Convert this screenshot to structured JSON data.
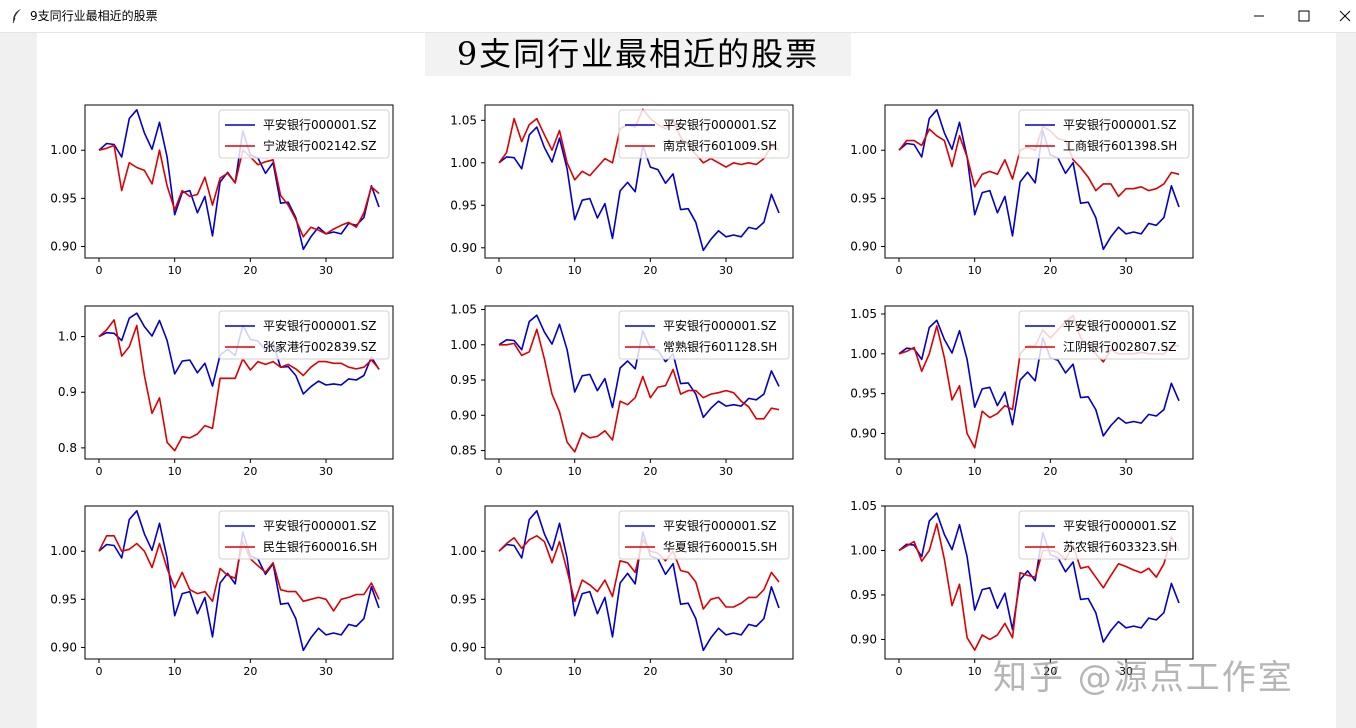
{
  "window": {
    "title": "9支同行业最相近的股票"
  },
  "figure": {
    "suptitle": "9支同行业最相近的股票"
  },
  "watermark": "知乎 @源点工作室",
  "colors": {
    "base": "#0000cc",
    "peer": "#dd0000"
  },
  "chart_data": [
    {
      "type": "line",
      "xticks": [
        0,
        10,
        20,
        30
      ],
      "ylim": [
        0.888,
        1.047
      ],
      "yticks": [
        0.9,
        0.95,
        1.0
      ],
      "legend": "top-right",
      "series": [
        {
          "name": "平安银行000001.SZ",
          "values": [
            1.0,
            1.007,
            1.006,
            0.993,
            1.033,
            1.042,
            1.018,
            1.001,
            1.029,
            0.993,
            0.933,
            0.956,
            0.958,
            0.935,
            0.952,
            0.911,
            0.967,
            0.977,
            0.966,
            1.02,
            0.995,
            0.992,
            0.976,
            0.987,
            0.945,
            0.946,
            0.93,
            0.897,
            0.91,
            0.92,
            0.913,
            0.915,
            0.913,
            0.924,
            0.922,
            0.93,
            0.963,
            0.941
          ]
        },
        {
          "name": "宁波银行002142.SZ",
          "values": [
            1.0,
            1.002,
            1.005,
            0.958,
            0.987,
            0.982,
            0.979,
            0.965,
            1.0,
            0.963,
            0.938,
            0.958,
            0.952,
            0.954,
            0.972,
            0.943,
            0.971,
            0.976,
            0.966,
            1.0,
            0.993,
            0.985,
            0.988,
            0.99,
            0.953,
            0.943,
            0.928,
            0.91,
            0.92,
            0.917,
            0.913,
            0.918,
            0.922,
            0.925,
            0.92,
            0.935,
            0.962,
            0.955
          ]
        }
      ]
    },
    {
      "type": "line",
      "xticks": [
        0,
        10,
        20,
        30
      ],
      "ylim": [
        0.888,
        1.068
      ],
      "yticks": [
        0.9,
        0.95,
        1.0,
        1.05
      ],
      "legend": "top-right",
      "series": [
        {
          "name": "平安银行000001.SZ",
          "values": [
            1.0,
            1.007,
            1.006,
            0.993,
            1.033,
            1.042,
            1.018,
            1.001,
            1.029,
            0.993,
            0.933,
            0.956,
            0.958,
            0.935,
            0.952,
            0.911,
            0.967,
            0.977,
            0.966,
            1.02,
            0.995,
            0.992,
            0.976,
            0.987,
            0.945,
            0.946,
            0.93,
            0.897,
            0.91,
            0.92,
            0.913,
            0.915,
            0.913,
            0.924,
            0.922,
            0.93,
            0.963,
            0.941
          ]
        },
        {
          "name": "南京银行601009.SH",
          "values": [
            1.0,
            1.012,
            1.052,
            1.025,
            1.045,
            1.052,
            1.033,
            1.015,
            1.038,
            1.0,
            0.98,
            0.99,
            0.985,
            0.995,
            1.005,
            1.0,
            1.04,
            1.045,
            1.042,
            1.063,
            1.052,
            1.045,
            1.04,
            1.05,
            1.03,
            1.02,
            1.01,
            1.0,
            1.005,
            1.0,
            0.995,
            1.0,
            0.998,
            1.0,
            0.998,
            1.005,
            1.02,
            1.015
          ]
        }
      ]
    },
    {
      "type": "line",
      "xticks": [
        0,
        10,
        20,
        30
      ],
      "ylim": [
        0.888,
        1.047
      ],
      "yticks": [
        0.9,
        0.95,
        1.0
      ],
      "legend": "top-right",
      "series": [
        {
          "name": "平安银行000001.SZ",
          "values": [
            1.0,
            1.007,
            1.006,
            0.993,
            1.033,
            1.042,
            1.018,
            1.001,
            1.029,
            0.993,
            0.933,
            0.956,
            0.958,
            0.935,
            0.952,
            0.911,
            0.967,
            0.977,
            0.966,
            1.02,
            0.995,
            0.992,
            0.976,
            0.987,
            0.945,
            0.946,
            0.93,
            0.897,
            0.91,
            0.92,
            0.913,
            0.915,
            0.913,
            0.924,
            0.922,
            0.93,
            0.963,
            0.941
          ]
        },
        {
          "name": "工商银行601398.SH",
          "values": [
            1.0,
            1.01,
            1.01,
            1.005,
            1.022,
            1.015,
            1.01,
            0.983,
            1.015,
            0.993,
            0.962,
            0.975,
            0.978,
            0.975,
            0.99,
            0.97,
            1.0,
            1.003,
            1.0,
            1.025,
            1.02,
            1.012,
            1.01,
            0.99,
            0.982,
            0.972,
            0.958,
            0.965,
            0.965,
            0.952,
            0.96,
            0.96,
            0.962,
            0.958,
            0.96,
            0.965,
            0.977,
            0.975
          ]
        }
      ]
    },
    {
      "type": "line",
      "xticks": [
        0,
        10,
        20,
        30
      ],
      "ylim": [
        0.78,
        1.055
      ],
      "yticks": [
        0.8,
        0.9,
        1.0
      ],
      "legend": "top-right",
      "series": [
        {
          "name": "平安银行000001.SZ",
          "values": [
            1.0,
            1.007,
            1.006,
            0.993,
            1.033,
            1.042,
            1.018,
            1.001,
            1.029,
            0.993,
            0.933,
            0.956,
            0.958,
            0.935,
            0.952,
            0.911,
            0.967,
            0.977,
            0.966,
            1.02,
            0.995,
            0.992,
            0.976,
            0.987,
            0.945,
            0.946,
            0.93,
            0.897,
            0.91,
            0.92,
            0.913,
            0.915,
            0.913,
            0.924,
            0.922,
            0.93,
            0.963,
            0.941
          ]
        },
        {
          "name": "张家港行002839.SZ",
          "values": [
            1.0,
            1.012,
            1.03,
            0.965,
            0.982,
            1.02,
            0.93,
            0.862,
            0.89,
            0.81,
            0.795,
            0.82,
            0.818,
            0.825,
            0.84,
            0.835,
            0.925,
            0.925,
            0.925,
            0.96,
            0.94,
            0.955,
            0.95,
            0.955,
            0.945,
            0.95,
            0.942,
            0.93,
            0.945,
            0.955,
            0.955,
            0.952,
            0.952,
            0.945,
            0.942,
            0.945,
            0.958,
            0.942
          ]
        }
      ]
    },
    {
      "type": "line",
      "xticks": [
        0,
        10,
        20,
        30
      ],
      "ylim": [
        0.838,
        1.055
      ],
      "yticks": [
        0.85,
        0.9,
        0.95,
        1.0,
        1.05
      ],
      "legend": "top-right",
      "series": [
        {
          "name": "平安银行000001.SZ",
          "values": [
            1.0,
            1.007,
            1.006,
            0.993,
            1.033,
            1.042,
            1.018,
            1.001,
            1.029,
            0.993,
            0.933,
            0.956,
            0.958,
            0.935,
            0.952,
            0.911,
            0.967,
            0.977,
            0.966,
            1.02,
            0.995,
            0.992,
            0.976,
            0.987,
            0.945,
            0.946,
            0.93,
            0.897,
            0.91,
            0.92,
            0.913,
            0.915,
            0.913,
            0.924,
            0.922,
            0.93,
            0.963,
            0.941
          ]
        },
        {
          "name": "常熟银行601128.SH",
          "values": [
            1.0,
            1.0,
            1.002,
            0.985,
            0.99,
            1.022,
            0.98,
            0.93,
            0.905,
            0.862,
            0.848,
            0.875,
            0.868,
            0.87,
            0.878,
            0.865,
            0.92,
            0.915,
            0.925,
            0.955,
            0.925,
            0.94,
            0.942,
            0.965,
            0.93,
            0.935,
            0.935,
            0.925,
            0.93,
            0.932,
            0.935,
            0.932,
            0.92,
            0.912,
            0.895,
            0.895,
            0.91,
            0.908
          ]
        }
      ]
    },
    {
      "type": "line",
      "xticks": [
        0,
        10,
        20,
        30
      ],
      "ylim": [
        0.868,
        1.06
      ],
      "yticks": [
        0.9,
        0.95,
        1.0,
        1.05
      ],
      "legend": "top-right",
      "series": [
        {
          "name": "平安银行000001.SZ",
          "values": [
            1.0,
            1.007,
            1.006,
            0.993,
            1.033,
            1.042,
            1.018,
            1.001,
            1.029,
            0.993,
            0.933,
            0.956,
            0.958,
            0.935,
            0.952,
            0.911,
            0.967,
            0.977,
            0.966,
            1.02,
            0.995,
            0.992,
            0.976,
            0.987,
            0.945,
            0.946,
            0.93,
            0.897,
            0.91,
            0.92,
            0.913,
            0.915,
            0.913,
            0.924,
            0.922,
            0.93,
            0.963,
            0.941
          ]
        },
        {
          "name": "江阴银行002807.SZ",
          "values": [
            1.0,
            1.003,
            1.008,
            0.978,
            1.0,
            1.035,
            0.995,
            0.942,
            0.96,
            0.9,
            0.882,
            0.928,
            0.92,
            0.925,
            0.935,
            0.93,
            1.0,
            1.01,
            1.01,
            1.03,
            1.02,
            1.03,
            1.04,
            1.048,
            1.02,
            1.01,
            1.0,
            0.99,
            1.005,
            1.0,
            1.0,
            1.0,
            1.002,
            1.0,
            1.0,
            1.0,
            1.01,
            1.01
          ]
        }
      ]
    },
    {
      "type": "line",
      "xticks": [
        0,
        10,
        20,
        30
      ],
      "ylim": [
        0.888,
        1.047
      ],
      "yticks": [
        0.9,
        0.95,
        1.0
      ],
      "legend": "top-right",
      "series": [
        {
          "name": "平安银行000001.SZ",
          "values": [
            1.0,
            1.007,
            1.006,
            0.993,
            1.033,
            1.042,
            1.018,
            1.001,
            1.029,
            0.993,
            0.933,
            0.956,
            0.958,
            0.935,
            0.952,
            0.911,
            0.967,
            0.977,
            0.966,
            1.02,
            0.995,
            0.992,
            0.976,
            0.987,
            0.945,
            0.946,
            0.93,
            0.897,
            0.91,
            0.92,
            0.913,
            0.915,
            0.913,
            0.924,
            0.922,
            0.93,
            0.963,
            0.941
          ]
        },
        {
          "name": "民生银行600016.SH",
          "values": [
            1.0,
            1.016,
            1.016,
            1.0,
            1.002,
            1.008,
            1.0,
            0.983,
            1.008,
            0.982,
            0.962,
            0.978,
            0.96,
            0.956,
            0.958,
            0.948,
            0.982,
            0.975,
            0.972,
            1.01,
            0.992,
            0.985,
            0.978,
            0.988,
            0.96,
            0.958,
            0.958,
            0.948,
            0.95,
            0.952,
            0.95,
            0.938,
            0.95,
            0.952,
            0.955,
            0.955,
            0.967,
            0.95
          ]
        }
      ]
    },
    {
      "type": "line",
      "xticks": [
        0,
        10,
        20,
        30
      ],
      "ylim": [
        0.888,
        1.047
      ],
      "yticks": [
        0.9,
        0.95,
        1.0
      ],
      "legend": "top-right",
      "series": [
        {
          "name": "平安银行000001.SZ",
          "values": [
            1.0,
            1.007,
            1.006,
            0.993,
            1.033,
            1.042,
            1.018,
            1.001,
            1.029,
            0.993,
            0.933,
            0.956,
            0.958,
            0.935,
            0.952,
            0.911,
            0.967,
            0.977,
            0.966,
            1.02,
            0.995,
            0.992,
            0.976,
            0.987,
            0.945,
            0.946,
            0.93,
            0.897,
            0.91,
            0.92,
            0.913,
            0.915,
            0.913,
            0.924,
            0.922,
            0.93,
            0.963,
            0.941
          ]
        },
        {
          "name": "华夏银行600015.SH",
          "values": [
            1.0,
            1.008,
            1.014,
            1.003,
            1.012,
            1.016,
            1.01,
            0.988,
            1.01,
            0.98,
            0.948,
            0.97,
            0.965,
            0.958,
            0.97,
            0.953,
            0.99,
            0.988,
            0.978,
            1.012,
            1.0,
            0.998,
            0.99,
            1.0,
            0.98,
            0.978,
            0.968,
            0.94,
            0.95,
            0.952,
            0.942,
            0.942,
            0.946,
            0.952,
            0.952,
            0.96,
            0.978,
            0.968
          ]
        }
      ]
    },
    {
      "type": "line",
      "xticks": [
        0,
        10,
        20,
        30
      ],
      "ylim": [
        0.878,
        1.05
      ],
      "yticks": [
        0.9,
        0.95,
        1.0,
        1.05
      ],
      "legend": "top-right",
      "series": [
        {
          "name": "平安银行000001.SZ",
          "values": [
            1.0,
            1.007,
            1.006,
            0.993,
            1.033,
            1.042,
            1.018,
            1.001,
            1.029,
            0.993,
            0.933,
            0.956,
            0.958,
            0.935,
            0.952,
            0.911,
            0.967,
            0.977,
            0.966,
            1.02,
            0.995,
            0.992,
            0.976,
            0.987,
            0.945,
            0.946,
            0.93,
            0.897,
            0.91,
            0.92,
            0.913,
            0.915,
            0.913,
            0.924,
            0.922,
            0.93,
            0.963,
            0.941
          ]
        },
        {
          "name": "苏农银行603323.SH",
          "values": [
            1.0,
            1.005,
            1.01,
            0.988,
            1.0,
            1.03,
            0.99,
            0.938,
            0.962,
            0.902,
            0.888,
            0.905,
            0.9,
            0.905,
            0.918,
            0.902,
            0.975,
            0.972,
            0.97,
            1.0,
            1.0,
            0.998,
            0.99,
            1.005,
            0.98,
            0.982,
            0.97,
            0.958,
            0.972,
            0.985,
            0.982,
            0.978,
            0.975,
            0.98,
            0.97,
            0.985,
            1.015,
            1.0
          ]
        }
      ]
    }
  ]
}
